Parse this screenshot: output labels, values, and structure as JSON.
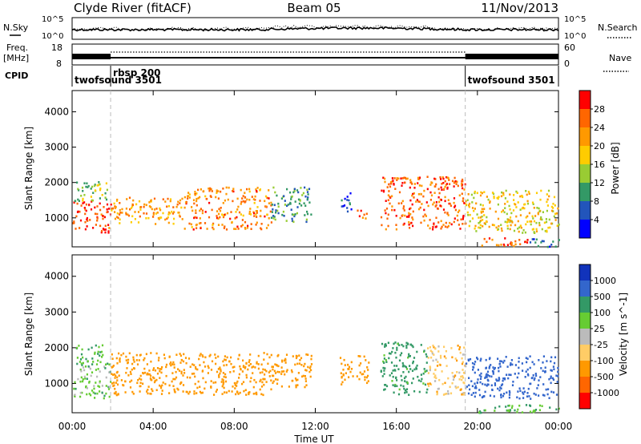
{
  "header": {
    "station": "Clyde River (fitACF)",
    "beam": "Beam 05",
    "date": "11/Nov/2013"
  },
  "status_panels": {
    "nsky_label": "N.Sky",
    "nsearch_label": "N.Search",
    "freq_label_line1": "Freq.",
    "freq_label_line2": "[MHz]",
    "nave_label": "Nave",
    "cpid_label": "CPID",
    "noise_axis_top": "10^5",
    "noise_axis_bottom": "10^0",
    "freq_axis_top": "18",
    "freq_axis_bottom": "8",
    "nave_axis_top": "60",
    "nave_axis_bottom": "0",
    "cpid_segments": [
      {
        "label": "twofsound 3501",
        "start_hour": 0,
        "end_hour": 1.9
      },
      {
        "label": "rbsp 200",
        "start_hour": 1.9,
        "end_hour": 19.4
      },
      {
        "label": "twofsound 3501",
        "start_hour": 19.4,
        "end_hour": 24
      }
    ]
  },
  "chart_data": [
    {
      "type": "heatmap",
      "name": "power",
      "ylabel": "Slant Range [km]",
      "xlabel": "",
      "xlim": [
        0,
        24
      ],
      "ylim": [
        180,
        4600
      ],
      "yticks": [
        1000,
        2000,
        3000,
        4000
      ],
      "colorbar_label": "Power [dB]",
      "colorbar_ticks": [
        "28",
        "24",
        "20",
        "16",
        "12",
        "8",
        "4"
      ],
      "colorbar_colors": [
        "#ff0000",
        "#ff6600",
        "#ff9900",
        "#ffcc00",
        "#99cc33",
        "#339966",
        "#2255bb",
        "#0000ff"
      ],
      "scatter_blobs": [
        {
          "t0": 0.0,
          "t1": 1.9,
          "r0": 600,
          "r1": 1500,
          "value": 28
        },
        {
          "t0": 0.1,
          "t1": 1.8,
          "r0": 1500,
          "r1": 2100,
          "value": 14
        },
        {
          "t0": 1.9,
          "t1": 5.5,
          "r0": 850,
          "r1": 1600,
          "value": 22
        },
        {
          "t0": 5.5,
          "t1": 9.8,
          "r0": 700,
          "r1": 1900,
          "value": 24
        },
        {
          "t0": 9.8,
          "t1": 11.8,
          "r0": 900,
          "r1": 1900,
          "value": 10
        },
        {
          "t0": 13.2,
          "t1": 13.8,
          "r0": 1200,
          "r1": 1800,
          "value": 6
        },
        {
          "t0": 14.0,
          "t1": 14.6,
          "r0": 1000,
          "r1": 1300,
          "value": 26
        },
        {
          "t0": 15.2,
          "t1": 19.4,
          "r0": 700,
          "r1": 2200,
          "value": 26
        },
        {
          "t0": 19.4,
          "t1": 24.0,
          "r0": 600,
          "r1": 1800,
          "value": 18
        },
        {
          "t0": 20.0,
          "t1": 22.5,
          "r0": 200,
          "r1": 450,
          "value": 26
        },
        {
          "t0": 22.5,
          "t1": 24.0,
          "r0": 200,
          "r1": 450,
          "value": 6
        }
      ]
    },
    {
      "type": "heatmap",
      "name": "velocity",
      "ylabel": "Slant Range [km]",
      "xlabel": "Time UT",
      "xlim": [
        0,
        24
      ],
      "ylim": [
        180,
        4600
      ],
      "yticks": [
        1000,
        2000,
        3000,
        4000
      ],
      "xticks": [
        "00:00",
        "04:00",
        "08:00",
        "12:00",
        "16:00",
        "20:00",
        "00:00"
      ],
      "colorbar_label": "Velocity [m s^-1]",
      "colorbar_ticks": [
        "1000",
        "500",
        "100",
        "25",
        "-25",
        "-100",
        "-500",
        "-1000"
      ],
      "colorbar_colors": [
        "#1133bb",
        "#3366cc",
        "#339966",
        "#66cc33",
        "#bbbbbb",
        "#ffcc66",
        "#ff9900",
        "#ff6600",
        "#ff0000"
      ],
      "scatter_blobs": [
        {
          "t0": 0.0,
          "t1": 1.9,
          "r0": 600,
          "r1": 1500,
          "value": 50
        },
        {
          "t0": 0.1,
          "t1": 1.8,
          "r0": 1500,
          "r1": 2100,
          "value": 100
        },
        {
          "t0": 1.9,
          "t1": 9.8,
          "r0": 700,
          "r1": 1900,
          "value": -300
        },
        {
          "t0": 9.8,
          "t1": 11.8,
          "r0": 900,
          "r1": 1900,
          "value": -300
        },
        {
          "t0": 13.2,
          "t1": 14.6,
          "r0": 1000,
          "r1": 1800,
          "value": -300
        },
        {
          "t0": 15.2,
          "t1": 17.5,
          "r0": 700,
          "r1": 2200,
          "value": 150
        },
        {
          "t0": 17.5,
          "t1": 19.4,
          "r0": 700,
          "r1": 2100,
          "value": -60
        },
        {
          "t0": 19.4,
          "t1": 24.0,
          "r0": 600,
          "r1": 1800,
          "value": 700
        },
        {
          "t0": 20.0,
          "t1": 24.0,
          "r0": 200,
          "r1": 450,
          "value": 100
        }
      ]
    }
  ]
}
